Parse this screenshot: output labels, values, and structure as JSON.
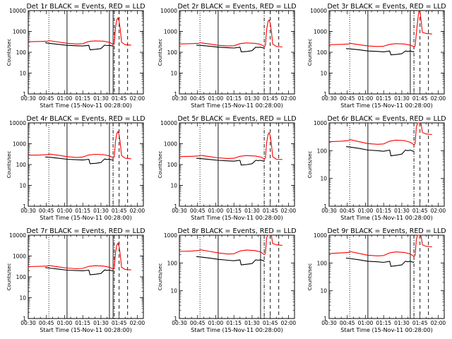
{
  "xaxis_label": "Start Time (15-Nov-11 00:28:00)",
  "yaxis_label": "Counts/sec",
  "x_ticks": [
    "00:30",
    "00:45",
    "01:00",
    "01:15",
    "01:30",
    "01:45",
    "02:00"
  ],
  "y_ticks": [
    "1",
    "10",
    "100",
    "1000",
    "10000"
  ],
  "colors": {
    "events": "#000000",
    "lld": "#ff0000"
  },
  "chart_data": [
    {
      "type": "line",
      "title": "Det 1r BLACK = Events, RED = LLD",
      "x_range_minutes": [
        30,
        125
      ],
      "y_range": [
        1,
        10000
      ],
      "y_scale": "log",
      "vlines": [
        {
          "x": 47,
          "style": "dotted"
        },
        {
          "x": 62,
          "style": "solid"
        },
        {
          "x": 97,
          "style": "solid"
        },
        {
          "x": 100,
          "style": "solid"
        },
        {
          "x": 101,
          "style": "dashdot"
        },
        {
          "x": 105,
          "style": "dashed"
        },
        {
          "x": 112,
          "style": "dashed"
        }
      ],
      "series": [
        {
          "name": "BLACK = Events",
          "x": [
            44,
            47,
            55,
            62,
            70,
            75,
            80,
            81,
            86,
            90,
            93,
            95,
            97,
            99.5,
            100
          ],
          "values": [
            290,
            270,
            240,
            215,
            205,
            200,
            215,
            130,
            140,
            150,
            220,
            210,
            215,
            200,
            200
          ]
        },
        {
          "name": "RED = LLD",
          "x": [
            30,
            40,
            46,
            47,
            55,
            62,
            70,
            75,
            80,
            85,
            92,
            97,
            99.5,
            100,
            101,
            102,
            103,
            104,
            105,
            106,
            107,
            110,
            115
          ],
          "values": [
            320,
            330,
            340,
            360,
            310,
            270,
            250,
            260,
            330,
            350,
            340,
            300,
            250,
            240,
            260,
            1500,
            3500,
            4500,
            3000,
            1200,
            300,
            230,
            220
          ]
        }
      ]
    },
    {
      "type": "line",
      "title": "Det 2r BLACK = Events, RED = LLD",
      "x_range_minutes": [
        30,
        125
      ],
      "y_range": [
        1,
        10000
      ],
      "y_scale": "log",
      "vlines": [
        {
          "x": 47,
          "style": "dotted"
        },
        {
          "x": 62,
          "style": "solid"
        },
        {
          "x": 100,
          "style": "dashdot"
        },
        {
          "x": 105,
          "style": "dashed"
        },
        {
          "x": 112,
          "style": "dashed"
        }
      ],
      "series": [
        {
          "name": "BLACK = Events",
          "x": [
            44,
            47,
            55,
            62,
            70,
            75,
            80,
            81,
            86,
            90,
            93,
            95,
            97,
            99.5,
            100
          ],
          "values": [
            220,
            215,
            195,
            175,
            165,
            160,
            175,
            105,
            110,
            120,
            175,
            170,
            175,
            160,
            160
          ]
        },
        {
          "name": "RED = LLD",
          "x": [
            30,
            40,
            46,
            47,
            55,
            62,
            70,
            75,
            80,
            85,
            92,
            97,
            99.5,
            100,
            101,
            102,
            103,
            104,
            105,
            106,
            107,
            110,
            115
          ],
          "values": [
            250,
            260,
            270,
            290,
            250,
            215,
            200,
            205,
            260,
            280,
            270,
            240,
            200,
            190,
            210,
            1200,
            2800,
            3600,
            2400,
            950,
            250,
            190,
            180
          ]
        }
      ]
    },
    {
      "type": "line",
      "title": "Det 3r BLACK = Events, RED = LLD",
      "x_range_minutes": [
        30,
        125
      ],
      "y_range": [
        1,
        10000
      ],
      "y_scale": "log",
      "vlines": [
        {
          "x": 47,
          "style": "dotted"
        },
        {
          "x": 62,
          "style": "solid"
        },
        {
          "x": 97,
          "style": "solid"
        },
        {
          "x": 100,
          "style": "dashdot"
        },
        {
          "x": 105,
          "style": "dashed"
        },
        {
          "x": 112,
          "style": "dashed"
        }
      ],
      "series": [
        {
          "name": "BLACK = Events",
          "x": [
            44,
            47,
            55,
            62,
            70,
            75,
            80,
            81,
            86,
            90,
            93,
            95,
            97,
            99.5,
            100
          ],
          "values": [
            150,
            145,
            130,
            115,
            110,
            105,
            115,
            75,
            80,
            85,
            115,
            110,
            115,
            105,
            105
          ]
        },
        {
          "name": "RED = LLD",
          "x": [
            30,
            40,
            46,
            47,
            55,
            62,
            70,
            75,
            80,
            85,
            92,
            97,
            99.5,
            100,
            101,
            102,
            103,
            104,
            105,
            106,
            107,
            110,
            115
          ],
          "values": [
            230,
            240,
            250,
            270,
            230,
            200,
            190,
            195,
            240,
            260,
            250,
            220,
            190,
            180,
            200,
            800,
            3000,
            9000,
            9000,
            3000,
            900,
            800,
            750
          ]
        }
      ]
    },
    {
      "type": "line",
      "title": "Det 4r BLACK = Events, RED = LLD",
      "x_range_minutes": [
        30,
        125
      ],
      "y_range": [
        1,
        10000
      ],
      "y_scale": "log",
      "vlines": [
        {
          "x": 47,
          "style": "dotted"
        },
        {
          "x": 62,
          "style": "solid"
        },
        {
          "x": 97,
          "style": "solid"
        },
        {
          "x": 100,
          "style": "dashdot"
        },
        {
          "x": 105,
          "style": "dashed"
        },
        {
          "x": 112,
          "style": "dashed"
        }
      ],
      "series": [
        {
          "name": "BLACK = Events",
          "x": [
            44,
            47,
            55,
            62,
            70,
            75,
            80,
            81,
            86,
            90,
            93,
            95,
            97,
            99.5,
            100
          ],
          "values": [
            230,
            225,
            200,
            180,
            170,
            165,
            180,
            110,
            115,
            125,
            185,
            175,
            180,
            165,
            165
          ]
        },
        {
          "name": "RED = LLD",
          "x": [
            30,
            40,
            46,
            47,
            55,
            62,
            70,
            75,
            80,
            85,
            92,
            97,
            99.5,
            100,
            101,
            102,
            103,
            104,
            105,
            106,
            107,
            110,
            115
          ],
          "values": [
            280,
            290,
            300,
            320,
            280,
            240,
            220,
            230,
            290,
            310,
            300,
            260,
            220,
            210,
            230,
            1300,
            3000,
            3900,
            2600,
            1000,
            270,
            200,
            190
          ]
        }
      ]
    },
    {
      "type": "line",
      "title": "Det 5r BLACK = Events, RED = LLD",
      "x_range_minutes": [
        30,
        125
      ],
      "y_range": [
        1,
        10000
      ],
      "y_scale": "log",
      "vlines": [
        {
          "x": 47,
          "style": "dotted"
        },
        {
          "x": 62,
          "style": "solid"
        },
        {
          "x": 100,
          "style": "dashdot"
        },
        {
          "x": 105,
          "style": "dashed"
        },
        {
          "x": 112,
          "style": "dashed"
        }
      ],
      "series": [
        {
          "name": "BLACK = Events",
          "x": [
            44,
            47,
            55,
            62,
            70,
            75,
            80,
            81,
            86,
            90,
            93,
            95,
            97,
            99.5,
            100
          ],
          "values": [
            200,
            195,
            175,
            160,
            150,
            145,
            160,
            95,
            100,
            110,
            160,
            155,
            160,
            145,
            145
          ]
        },
        {
          "name": "RED = LLD",
          "x": [
            30,
            40,
            46,
            47,
            55,
            62,
            70,
            75,
            80,
            85,
            92,
            97,
            99.5,
            100,
            101,
            102,
            103,
            104,
            105,
            106,
            107,
            110,
            115
          ],
          "values": [
            240,
            250,
            260,
            280,
            240,
            210,
            195,
            200,
            250,
            270,
            260,
            230,
            195,
            185,
            205,
            1100,
            2600,
            3400,
            2300,
            900,
            240,
            180,
            175
          ]
        }
      ]
    },
    {
      "type": "line",
      "title": "Det 6r BLACK = Events, RED = LLD",
      "x_range_minutes": [
        30,
        125
      ],
      "y_range": [
        1,
        1000
      ],
      "y_scale": "log",
      "vlines": [
        {
          "x": 47,
          "style": "dotted"
        },
        {
          "x": 62,
          "style": "solid"
        },
        {
          "x": 100,
          "style": "dashdot"
        },
        {
          "x": 105,
          "style": "dashed"
        },
        {
          "x": 112,
          "style": "dashed"
        }
      ],
      "series": [
        {
          "name": "BLACK = Events",
          "x": [
            44,
            47,
            55,
            62,
            70,
            75,
            80,
            81,
            86,
            90,
            93,
            95,
            97,
            99.5,
            100
          ],
          "values": [
            140,
            135,
            120,
            105,
            100,
            95,
            105,
            65,
            70,
            75,
            105,
            100,
            105,
            95,
            95
          ]
        },
        {
          "name": "RED = LLD",
          "x": [
            30,
            40,
            46,
            47,
            55,
            62,
            70,
            75,
            80,
            85,
            92,
            97,
            99.5,
            100,
            101,
            102,
            103,
            104,
            105,
            106,
            107,
            110,
            115
          ],
          "values": [
            210,
            220,
            230,
            250,
            210,
            180,
            170,
            175,
            220,
            240,
            230,
            200,
            170,
            160,
            180,
            700,
            1000,
            1000,
            1000,
            900,
            450,
            400,
            380
          ]
        }
      ]
    },
    {
      "type": "line",
      "title": "Det 7r BLACK = Events, RED = LLD",
      "x_range_minutes": [
        30,
        125
      ],
      "y_range": [
        1,
        10000
      ],
      "y_scale": "log",
      "vlines": [
        {
          "x": 47,
          "style": "dotted"
        },
        {
          "x": 62,
          "style": "solid"
        },
        {
          "x": 97,
          "style": "solid"
        },
        {
          "x": 100,
          "style": "solid"
        },
        {
          "x": 101,
          "style": "dashdot"
        },
        {
          "x": 105,
          "style": "dashed"
        },
        {
          "x": 112,
          "style": "dashed"
        }
      ],
      "series": [
        {
          "name": "BLACK = Events",
          "x": [
            44,
            47,
            55,
            62,
            70,
            75,
            80,
            81,
            86,
            90,
            93,
            95,
            97,
            99.5,
            100
          ],
          "values": [
            280,
            265,
            235,
            210,
            200,
            195,
            210,
            125,
            135,
            145,
            215,
            205,
            210,
            195,
            195
          ]
        },
        {
          "name": "RED = LLD",
          "x": [
            30,
            40,
            46,
            47,
            55,
            62,
            70,
            75,
            80,
            85,
            92,
            97,
            99.5,
            100,
            101,
            102,
            103,
            104,
            105,
            106,
            107,
            110,
            115
          ],
          "values": [
            310,
            320,
            330,
            350,
            300,
            265,
            245,
            255,
            320,
            340,
            330,
            290,
            245,
            235,
            255,
            1400,
            3200,
            4200,
            2800,
            1100,
            290,
            225,
            215
          ]
        }
      ]
    },
    {
      "type": "line",
      "title": "Det 8r BLACK = Events, RED = LLD",
      "x_range_minutes": [
        30,
        125
      ],
      "y_range": [
        1,
        1000
      ],
      "y_scale": "log",
      "vlines": [
        {
          "x": 47,
          "style": "dotted"
        },
        {
          "x": 62,
          "style": "solid"
        },
        {
          "x": 97,
          "style": "solid"
        },
        {
          "x": 100,
          "style": "dashdot"
        },
        {
          "x": 105,
          "style": "dashed"
        },
        {
          "x": 112,
          "style": "dashed"
        }
      ],
      "series": [
        {
          "name": "BLACK = Events",
          "x": [
            44,
            47,
            55,
            62,
            70,
            75,
            80,
            81,
            86,
            90,
            93,
            95,
            97,
            99.5,
            100
          ],
          "values": [
            170,
            165,
            150,
            135,
            125,
            120,
            130,
            85,
            90,
            95,
            130,
            125,
            130,
            120,
            120
          ]
        },
        {
          "name": "RED = LLD",
          "x": [
            30,
            40,
            46,
            47,
            55,
            62,
            70,
            75,
            80,
            85,
            92,
            97,
            99.5,
            100,
            101,
            102,
            103,
            104,
            105,
            106,
            107,
            110,
            115
          ],
          "values": [
            260,
            270,
            280,
            300,
            260,
            230,
            210,
            215,
            270,
            290,
            280,
            250,
            210,
            200,
            220,
            800,
            1000,
            1000,
            1000,
            950,
            500,
            450,
            430
          ]
        }
      ]
    },
    {
      "type": "line",
      "title": "Det 9r BLACK = Events, RED = LLD",
      "x_range_minutes": [
        30,
        125
      ],
      "y_range": [
        1,
        1000
      ],
      "y_scale": "log",
      "vlines": [
        {
          "x": 47,
          "style": "dotted"
        },
        {
          "x": 62,
          "style": "solid"
        },
        {
          "x": 97,
          "style": "solid"
        },
        {
          "x": 100,
          "style": "dashdot"
        },
        {
          "x": 105,
          "style": "dashed"
        },
        {
          "x": 112,
          "style": "dashed"
        }
      ],
      "series": [
        {
          "name": "BLACK = Events",
          "x": [
            44,
            47,
            55,
            62,
            70,
            75,
            80,
            81,
            86,
            90,
            93,
            95,
            97,
            99.5,
            100
          ],
          "values": [
            150,
            145,
            130,
            115,
            110,
            105,
            115,
            75,
            80,
            85,
            115,
            110,
            115,
            105,
            105
          ]
        },
        {
          "name": "RED = LLD",
          "x": [
            30,
            40,
            46,
            47,
            55,
            62,
            70,
            75,
            80,
            85,
            92,
            97,
            99.5,
            100,
            101,
            102,
            103,
            104,
            105,
            106,
            107,
            110,
            115
          ],
          "values": [
            220,
            230,
            240,
            260,
            220,
            190,
            180,
            185,
            230,
            250,
            240,
            210,
            180,
            170,
            190,
            700,
            1000,
            1000,
            1000,
            900,
            450,
            400,
            380
          ]
        }
      ]
    }
  ]
}
